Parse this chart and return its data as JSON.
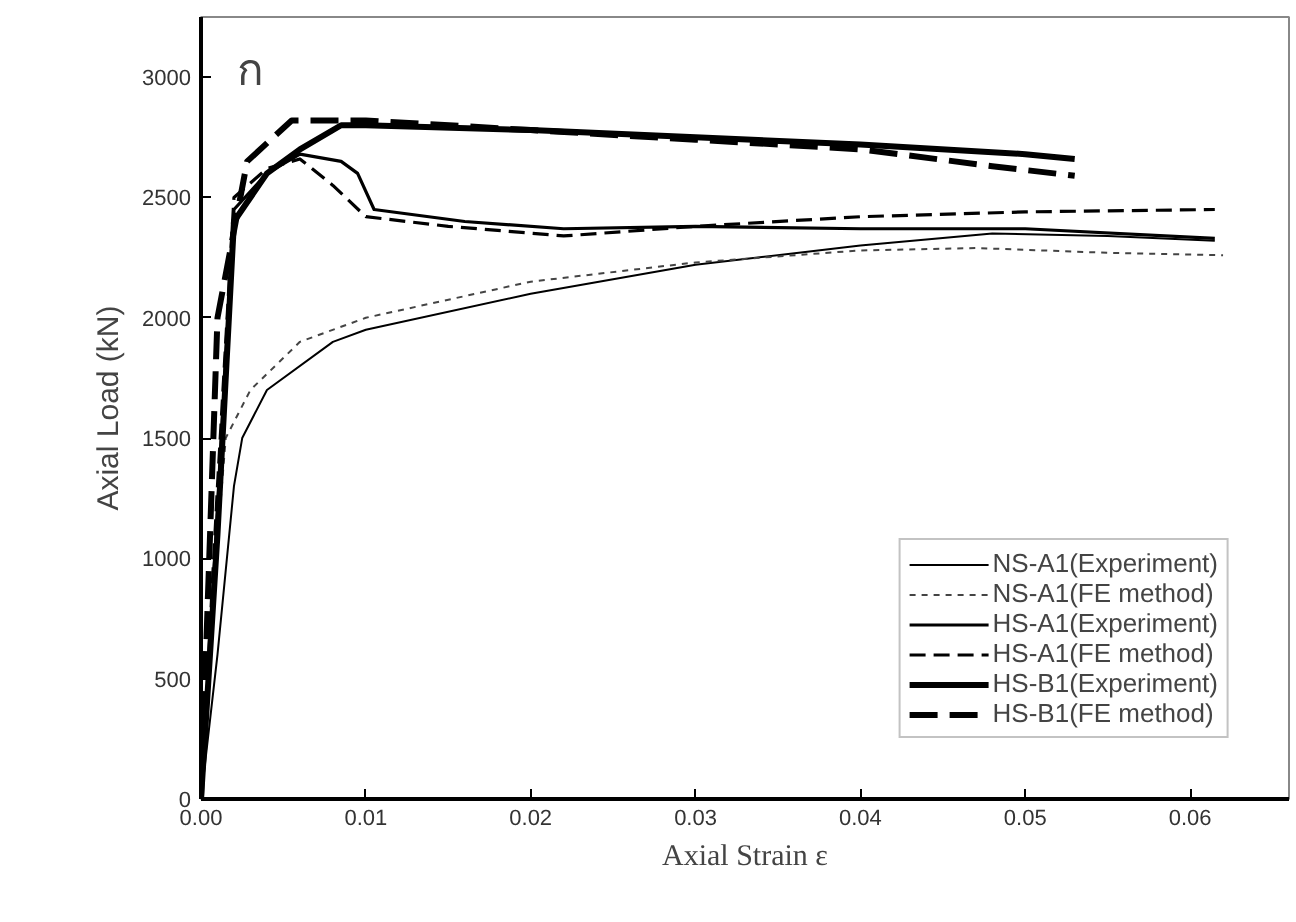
{
  "chart_data": {
    "type": "line",
    "annotations": [
      "ก"
    ],
    "xlabel": "Axial Strain ε",
    "ylabel": "Axial Load (kN)",
    "xlim": [
      0,
      0.066
    ],
    "ylim": [
      0,
      3250
    ],
    "xticks": [
      {
        "value": 0,
        "label": "0.00"
      },
      {
        "value": 0.01,
        "label": "0.01"
      },
      {
        "value": 0.02,
        "label": "0.02"
      },
      {
        "value": 0.03,
        "label": "0.03"
      },
      {
        "value": 0.04,
        "label": "0.04"
      },
      {
        "value": 0.05,
        "label": "0.05"
      },
      {
        "value": 0.06,
        "label": "0.06"
      }
    ],
    "yticks": [
      0,
      500,
      1000,
      1500,
      2000,
      2500,
      3000
    ],
    "grid": false,
    "legend": "bottom right",
    "marker": "none",
    "series": [
      {
        "name": "NS-A1(Experiment)",
        "color": "#000000",
        "line_style": "solid",
        "x": [
          0,
          0.001,
          0.002,
          0.0025,
          0.004,
          0.008,
          0.01,
          0.02,
          0.03,
          0.04,
          0.048,
          0.055,
          0.0615
        ],
        "values": [
          0,
          600,
          1300,
          1500,
          1700,
          1900,
          1950,
          2100,
          2220,
          2300,
          2350,
          2340,
          2320
        ]
      },
      {
        "name": "NS-A1(FE method)",
        "color": "#444444",
        "line_style": "dotted",
        "x": [
          0,
          0.0008,
          0.0015,
          0.003,
          0.006,
          0.01,
          0.02,
          0.03,
          0.04,
          0.047,
          0.055,
          0.062
        ],
        "values": [
          0,
          900,
          1500,
          1700,
          1900,
          2000,
          2150,
          2230,
          2280,
          2290,
          2270,
          2260
        ]
      },
      {
        "name": "HS-A1(Experiment)",
        "color": "#000000",
        "line_style": "solid",
        "x": [
          0,
          0.001,
          0.002,
          0.004,
          0.006,
          0.0085,
          0.0095,
          0.0105,
          0.016,
          0.022,
          0.03,
          0.04,
          0.05,
          0.0615
        ],
        "values": [
          0,
          1200,
          2450,
          2600,
          2680,
          2650,
          2600,
          2450,
          2400,
          2370,
          2380,
          2370,
          2370,
          2330
        ]
      },
      {
        "name": "HS-A1(FE method)",
        "color": "#000000",
        "line_style": "dashed",
        "x": [
          0,
          0.001,
          0.002,
          0.004,
          0.006,
          0.008,
          0.01,
          0.015,
          0.022,
          0.03,
          0.04,
          0.05,
          0.0615
        ],
        "values": [
          0,
          1300,
          2500,
          2620,
          2660,
          2550,
          2420,
          2380,
          2340,
          2380,
          2420,
          2440,
          2450
        ]
      },
      {
        "name": "HS-B1(Experiment)",
        "color": "#000000",
        "line_style": "solid",
        "x": [
          0,
          0.001,
          0.002,
          0.004,
          0.006,
          0.0085,
          0.01,
          0.02,
          0.03,
          0.04,
          0.05,
          0.053
        ],
        "values": [
          0,
          1100,
          2400,
          2600,
          2700,
          2800,
          2800,
          2780,
          2750,
          2720,
          2680,
          2660
        ]
      },
      {
        "name": "HS-B1(FE method)",
        "color": "#000000",
        "line_style": "dashed",
        "x": [
          0,
          0.001,
          0.0028,
          0.0055,
          0.01,
          0.02,
          0.03,
          0.04,
          0.048,
          0.053
        ],
        "values": [
          0,
          2000,
          2650,
          2820,
          2820,
          2780,
          2740,
          2700,
          2630,
          2590
        ]
      }
    ]
  }
}
